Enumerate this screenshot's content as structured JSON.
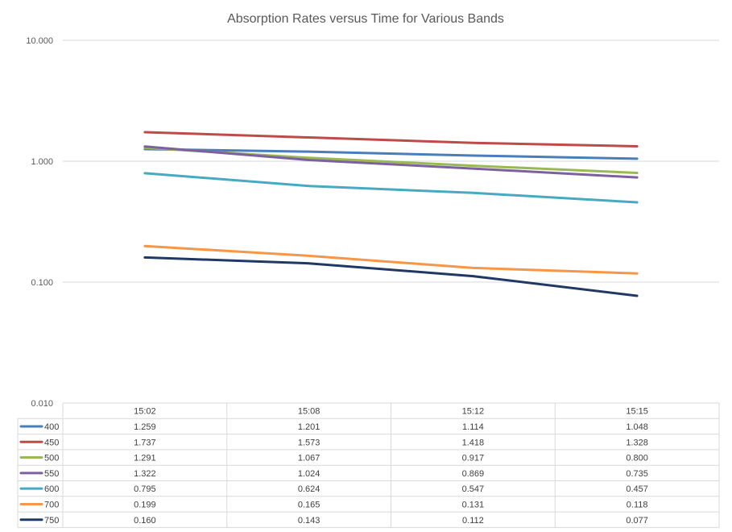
{
  "chart_data": {
    "type": "line",
    "title": "Absorption Rates versus Time for Various Bands",
    "xlabel": "",
    "ylabel": "",
    "yscale": "log",
    "ylim": [
      0.01,
      10
    ],
    "grid": true,
    "legend": "data-table",
    "categories": [
      "15:02",
      "15:08",
      "15:12",
      "15:15"
    ],
    "y_ticks": [
      {
        "value": 10,
        "label": "10.000"
      },
      {
        "value": 1,
        "label": "1.000"
      },
      {
        "value": 0.1,
        "label": "0.100"
      },
      {
        "value": 0.01,
        "label": "0.010"
      }
    ],
    "series": [
      {
        "name": "400",
        "color": "#4a7ebb",
        "values": [
          1.259,
          1.201,
          1.114,
          1.048
        ],
        "labels": [
          "1.259",
          "1.201",
          "1.114",
          "1.048"
        ]
      },
      {
        "name": "450",
        "color": "#be4b48",
        "values": [
          1.737,
          1.573,
          1.418,
          1.328
        ],
        "labels": [
          "1.737",
          "1.573",
          "1.418",
          "1.328"
        ]
      },
      {
        "name": "500",
        "color": "#98b954",
        "values": [
          1.291,
          1.067,
          0.917,
          0.8
        ],
        "labels": [
          "1.291",
          "1.067",
          "0.917",
          "0.800"
        ]
      },
      {
        "name": "550",
        "color": "#7d60a0",
        "values": [
          1.322,
          1.024,
          0.869,
          0.735
        ],
        "labels": [
          "1.322",
          "1.024",
          "0.869",
          "0.735"
        ]
      },
      {
        "name": "600",
        "color": "#46aac5",
        "values": [
          0.795,
          0.624,
          0.547,
          0.457
        ],
        "labels": [
          "0.795",
          "0.624",
          "0.547",
          "0.457"
        ]
      },
      {
        "name": "700",
        "color": "#f79646",
        "values": [
          0.199,
          0.165,
          0.131,
          0.118
        ],
        "labels": [
          "0.199",
          "0.165",
          "0.131",
          "0.118"
        ]
      },
      {
        "name": "750",
        "color": "#1f3864",
        "values": [
          0.16,
          0.143,
          0.112,
          0.077
        ],
        "labels": [
          "0.160",
          "0.143",
          "0.112",
          "0.077"
        ]
      }
    ]
  }
}
